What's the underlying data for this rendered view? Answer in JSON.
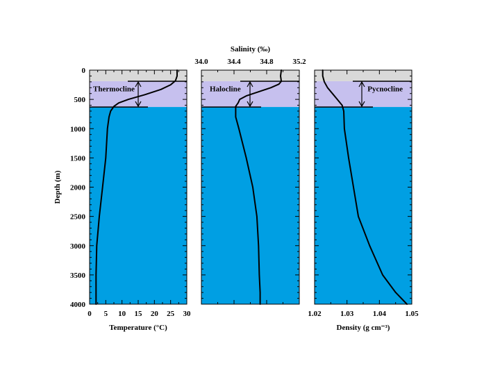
{
  "chart_data": [
    {
      "type": "line",
      "panel": "temperature",
      "xlabel": "Temperature (°C)",
      "ylabel": "Depth (m)",
      "xlim": [
        0,
        30
      ],
      "ylim": [
        4000,
        0
      ],
      "x_ticks": [
        "0",
        "5",
        "10",
        "15",
        "20",
        "25",
        "30"
      ],
      "y_ticks": [
        "0",
        "500",
        "1000",
        "1500",
        "2000",
        "2500",
        "3000",
        "3500",
        "4000"
      ],
      "x_axis_position": "bottom",
      "zone_label": "Thermocline",
      "layers": {
        "surface_mixed_layer": [
          0,
          190
        ],
        "cline": [
          190,
          630
        ],
        "deep": [
          630,
          4000
        ],
        "colors": {
          "surface": "#d9d9d9",
          "cline": "#c6c0ee",
          "deep": "#009fe3"
        }
      },
      "series": [
        {
          "x": [
            27,
            27,
            26.5,
            25,
            22,
            17,
            12,
            9,
            7.5,
            6.5,
            6,
            5.5,
            5,
            4,
            3,
            2.2,
            2,
            2,
            2
          ],
          "y": [
            0,
            100,
            180,
            250,
            330,
            420,
            500,
            560,
            620,
            700,
            800,
            1000,
            1500,
            2000,
            2500,
            3000,
            3500,
            3800,
            4000
          ]
        }
      ]
    },
    {
      "type": "line",
      "panel": "salinity",
      "xlabel": "Salinity (‰)",
      "xlim": [
        34.0,
        35.2
      ],
      "ylim": [
        4000,
        0
      ],
      "x_ticks": [
        "34.0",
        "34.4",
        "34.8",
        "35.2"
      ],
      "x_axis_position": "top",
      "zone_label": "Halocline",
      "layers": {
        "surface_mixed_layer": [
          0,
          190
        ],
        "cline": [
          190,
          630
        ],
        "deep": [
          630,
          4000
        ],
        "colors": {
          "surface": "#d9d9d9",
          "cline": "#c6c0ee",
          "deep": "#009fe3"
        }
      },
      "series": [
        {
          "x": [
            34.98,
            34.97,
            34.98,
            34.95,
            34.85,
            34.7,
            34.55,
            34.47,
            34.45,
            34.42,
            34.42,
            34.46,
            34.55,
            34.63,
            34.68,
            34.7,
            34.71,
            34.72,
            34.72
          ],
          "y": [
            0,
            100,
            190,
            240,
            300,
            370,
            440,
            500,
            560,
            620,
            800,
            1000,
            1500,
            2000,
            2500,
            3000,
            3500,
            3800,
            4000
          ]
        }
      ]
    },
    {
      "type": "line",
      "panel": "density",
      "xlabel": "Density (g cm⁻³)",
      "xlim": [
        1.02,
        1.05
      ],
      "ylim": [
        4000,
        0
      ],
      "x_ticks": [
        "1.02",
        "1.03",
        "1.04",
        "1.05"
      ],
      "x_axis_position": "bottom",
      "zone_label": "Pycnocline",
      "layers": {
        "surface_mixed_layer": [
          0,
          190
        ],
        "cline": [
          190,
          630
        ],
        "deep": [
          630,
          4000
        ],
        "colors": {
          "surface": "#d9d9d9",
          "cline": "#c6c0ee",
          "deep": "#009fe3"
        }
      },
      "series": [
        {
          "x": [
            1.0225,
            1.0225,
            1.023,
            1.024,
            1.0255,
            1.027,
            1.0285,
            1.029,
            1.0292,
            1.0305,
            1.032,
            1.0335,
            1.037,
            1.041,
            1.045,
            1.0485
          ],
          "y": [
            0,
            100,
            200,
            300,
            400,
            500,
            600,
            700,
            1000,
            1500,
            2000,
            2500,
            3000,
            3500,
            3800,
            4000
          ]
        }
      ]
    }
  ]
}
